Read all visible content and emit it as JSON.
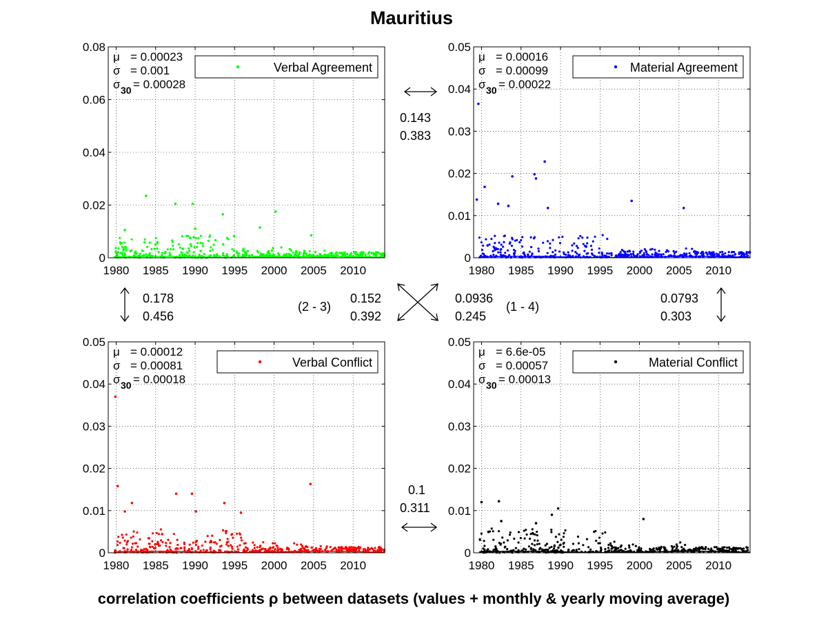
{
  "title": "Mauritius",
  "footer": "correlation coefficients ρ between datasets (values + monthly & yearly moving average)",
  "panels": [
    {
      "name": "Verbal Agreement",
      "color": "#00ff00",
      "ylim": [
        0,
        0.08
      ],
      "yticks": [
        "0",
        "0.02",
        "0.04",
        "0.06",
        "0.08"
      ],
      "stats": {
        "mu": "= 0.00023",
        "sigma": "= 0.001",
        "sigma30": "= 0.00028"
      },
      "peaks": [
        [
          1983.8,
          0.0235
        ],
        [
          1987.5,
          0.0205
        ],
        [
          1989.7,
          0.0205
        ],
        [
          2000.2,
          0.0175
        ],
        [
          1993.5,
          0.0165
        ],
        [
          1998.2,
          0.0115
        ],
        [
          1990.0,
          0.011
        ],
        [
          1981.1,
          0.0105
        ],
        [
          2004.7,
          0.0085
        ]
      ]
    },
    {
      "name": "Material Agreement",
      "color": "#0000ff",
      "ylim": [
        0,
        0.05
      ],
      "yticks": [
        "0",
        "0.01",
        "0.02",
        "0.03",
        "0.04",
        "0.05"
      ],
      "stats": {
        "mu": "= 0.00016",
        "sigma": "= 0.00099",
        "sigma30": "= 0.00022"
      },
      "peaks": [
        [
          1979.6,
          0.0365
        ],
        [
          1988.0,
          0.0228
        ],
        [
          1986.7,
          0.0198
        ],
        [
          1986.9,
          0.0188
        ],
        [
          1983.9,
          0.0193
        ],
        [
          1980.4,
          0.0168
        ],
        [
          1979.4,
          0.0138
        ],
        [
          1999.0,
          0.0135
        ],
        [
          2005.6,
          0.0118
        ],
        [
          1982.1,
          0.0128
        ],
        [
          1983.4,
          0.0123
        ],
        [
          1988.4,
          0.0118
        ]
      ]
    },
    {
      "name": "Verbal Conflict",
      "color": "#ff0000",
      "ylim": [
        0,
        0.05
      ],
      "yticks": [
        "0",
        "0.01",
        "0.02",
        "0.03",
        "0.04",
        "0.05"
      ],
      "stats": {
        "mu": "= 0.00012",
        "sigma": "= 0.00081",
        "sigma30": "= 0.00018"
      },
      "peaks": [
        [
          1979.9,
          0.037
        ],
        [
          1980.2,
          0.0158
        ],
        [
          2004.6,
          0.0163
        ],
        [
          1987.6,
          0.014
        ],
        [
          1989.6,
          0.014
        ],
        [
          1993.7,
          0.0118
        ],
        [
          1982.0,
          0.0118
        ],
        [
          1995.8,
          0.0095
        ],
        [
          1990.1,
          0.0098
        ],
        [
          1981.1,
          0.0098
        ]
      ]
    },
    {
      "name": "Material Conflict",
      "color": "#000000",
      "ylim": [
        0,
        0.05
      ],
      "yticks": [
        "0",
        "0.01",
        "0.02",
        "0.03",
        "0.04",
        "0.05"
      ],
      "stats": {
        "mu": "= 6.6e-05",
        "sigma": "= 0.00057",
        "sigma30": "= 0.00013"
      },
      "peaks": [
        [
          1980.0,
          0.012
        ],
        [
          1982.2,
          0.0122
        ],
        [
          1989.7,
          0.0105
        ],
        [
          2000.5,
          0.008
        ],
        [
          1988.9,
          0.009
        ],
        [
          1982.5,
          0.0075
        ],
        [
          1986.9,
          0.007
        ]
      ]
    }
  ],
  "xlim": [
    1979,
    2014
  ],
  "xticks": [
    "1980",
    "1985",
    "1990",
    "1995",
    "2000",
    "2005",
    "2010"
  ],
  "stat_labels": {
    "mu": "μ",
    "sigma": "σ",
    "sigma30_base": "σ",
    "sigma30_sub": "30"
  },
  "correlations": {
    "top": {
      "a": "0.143",
      "b": "0.383"
    },
    "left": {
      "a": "0.178",
      "b": "0.456"
    },
    "right": {
      "a": "0.0793",
      "b": "0.303"
    },
    "bottom": {
      "a": "0.1",
      "b": "0.311"
    },
    "diag23": {
      "a": "0.152",
      "b": "0.392"
    },
    "diag14": {
      "a": "0.0936",
      "b": "0.245"
    },
    "pair23": "(2 - 3)",
    "pair14": "(1 - 4)"
  }
}
